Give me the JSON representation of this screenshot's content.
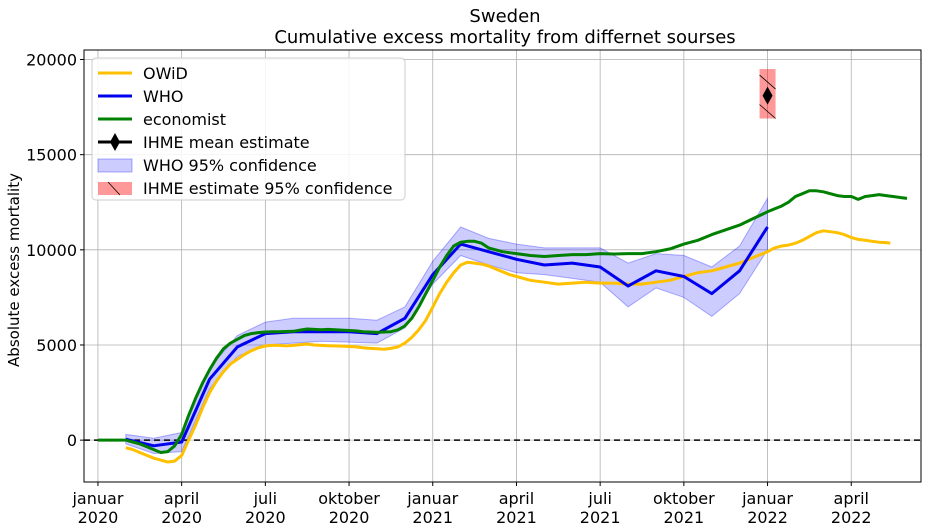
{
  "chart_data": {
    "type": "line",
    "title": "Sweden",
    "subtitle": "Cumulative excess mortality from differnet sourses",
    "ylabel": "Absolute excess mortality",
    "xlabel": "",
    "xlim": [
      -0.5,
      29.5
    ],
    "ylim": [
      -2200,
      20500
    ],
    "grid": true,
    "legend_position": "top-left",
    "y_ticks": [
      0,
      5000,
      10000,
      15000,
      20000
    ],
    "y_tick_labels": [
      "0",
      "5000",
      "10000",
      "15000",
      "20000"
    ],
    "x_ticks": [
      {
        "x": 0,
        "line1": "januar",
        "line2": "2020"
      },
      {
        "x": 3,
        "line1": "april",
        "line2": "2020"
      },
      {
        "x": 6,
        "line1": "juli",
        "line2": "2020"
      },
      {
        "x": 9,
        "line1": "oktober",
        "line2": "2020"
      },
      {
        "x": 12,
        "line1": "januar",
        "line2": "2021"
      },
      {
        "x": 15,
        "line1": "april",
        "line2": "2021"
      },
      {
        "x": 18,
        "line1": "juli",
        "line2": "2021"
      },
      {
        "x": 21,
        "line1": "oktober",
        "line2": "2021"
      },
      {
        "x": 24,
        "line1": "januar",
        "line2": "2022"
      },
      {
        "x": 27,
        "line1": "april",
        "line2": "2022"
      }
    ],
    "x_unit": "months since January 2020",
    "reference_line_y": 0,
    "series": [
      {
        "name": "OWiD",
        "color": "#ffc000",
        "x": [
          1.0,
          1.25,
          1.5,
          1.75,
          2.0,
          2.25,
          2.5,
          2.75,
          3.0,
          3.25,
          3.5,
          3.75,
          4.0,
          4.25,
          4.5,
          4.75,
          5.0,
          5.25,
          5.5,
          5.75,
          6.0,
          6.25,
          6.5,
          6.75,
          7.0,
          7.25,
          7.5,
          7.75,
          8.0,
          8.25,
          8.5,
          8.75,
          9.0,
          9.25,
          9.5,
          9.75,
          10.0,
          10.25,
          10.5,
          10.75,
          11.0,
          11.25,
          11.5,
          11.75,
          12.0,
          12.25,
          12.5,
          12.75,
          13.0,
          13.25,
          13.5,
          13.75,
          14.0,
          14.25,
          14.5,
          14.75,
          15.0,
          15.5,
          16.0,
          16.5,
          17.0,
          17.5,
          18.0,
          18.5,
          19.0,
          19.5,
          20.0,
          20.5,
          21.0,
          21.5,
          22.0,
          22.5,
          23.0,
          23.5,
          24.0,
          24.25,
          24.5,
          24.75,
          25.0,
          25.25,
          25.5,
          25.75,
          26.0,
          26.25,
          26.5,
          26.75,
          27.0,
          27.25,
          27.5,
          27.75,
          28.0,
          28.25,
          28.4
        ],
        "y": [
          -400,
          -500,
          -650,
          -800,
          -950,
          -1050,
          -1150,
          -1100,
          -800,
          0,
          800,
          1700,
          2500,
          3100,
          3600,
          4000,
          4250,
          4500,
          4700,
          4850,
          4950,
          4980,
          4980,
          4950,
          4980,
          5020,
          5050,
          5000,
          4980,
          4960,
          4950,
          4940,
          4920,
          4900,
          4850,
          4820,
          4800,
          4780,
          4820,
          4900,
          5100,
          5400,
          5800,
          6300,
          7000,
          7700,
          8300,
          8800,
          9200,
          9350,
          9300,
          9250,
          9150,
          9000,
          8850,
          8700,
          8600,
          8400,
          8300,
          8200,
          8250,
          8300,
          8250,
          8250,
          8200,
          8200,
          8300,
          8400,
          8600,
          8800,
          8900,
          9100,
          9300,
          9600,
          9900,
          10100,
          10200,
          10250,
          10350,
          10500,
          10700,
          10900,
          11000,
          10950,
          10900,
          10800,
          10650,
          10550,
          10500,
          10450,
          10400,
          10380,
          10350
        ]
      },
      {
        "name": "WHO",
        "color": "#0000ee",
        "x": [
          1,
          2,
          3,
          4,
          5,
          6,
          7,
          8,
          9,
          10,
          11,
          12,
          13,
          14,
          15,
          16,
          17,
          18,
          19,
          20,
          21,
          22,
          23,
          24
        ],
        "y": [
          50,
          -300,
          -100,
          3200,
          4900,
          5600,
          5700,
          5700,
          5700,
          5600,
          6400,
          8700,
          10300,
          9900,
          9500,
          9200,
          9300,
          9100,
          8100,
          8900,
          8600,
          7700,
          8900,
          11200
        ]
      },
      {
        "name": "economist",
        "color": "#008000",
        "x": [
          0.0,
          0.5,
          1.0,
          1.25,
          1.5,
          1.75,
          2.0,
          2.25,
          2.5,
          2.75,
          3.0,
          3.25,
          3.5,
          3.75,
          4.0,
          4.25,
          4.5,
          4.75,
          5.0,
          5.25,
          5.5,
          5.75,
          6.0,
          6.25,
          6.5,
          6.75,
          7.0,
          7.25,
          7.5,
          7.75,
          8.0,
          8.25,
          8.5,
          8.75,
          9.0,
          9.25,
          9.5,
          9.75,
          10.0,
          10.25,
          10.5,
          10.75,
          11.0,
          11.25,
          11.5,
          11.75,
          12.0,
          12.25,
          12.5,
          12.75,
          13.0,
          13.25,
          13.5,
          13.75,
          14.0,
          14.25,
          14.5,
          14.75,
          15.0,
          15.5,
          16.0,
          16.5,
          17.0,
          17.5,
          18.0,
          18.5,
          19.0,
          19.5,
          20.0,
          20.5,
          21.0,
          21.5,
          22.0,
          22.5,
          23.0,
          23.5,
          24.0,
          24.25,
          24.5,
          24.75,
          25.0,
          25.25,
          25.5,
          25.75,
          26.0,
          26.25,
          26.5,
          26.75,
          27.0,
          27.25,
          27.5,
          27.75,
          28.0,
          28.25,
          28.5,
          28.75,
          29.0
        ],
        "y": [
          0,
          0,
          0,
          -100,
          -200,
          -350,
          -500,
          -650,
          -600,
          -300,
          300,
          1300,
          2200,
          3000,
          3700,
          4300,
          4800,
          5100,
          5300,
          5500,
          5600,
          5650,
          5680,
          5700,
          5700,
          5710,
          5720,
          5780,
          5840,
          5820,
          5800,
          5820,
          5800,
          5780,
          5760,
          5740,
          5700,
          5680,
          5660,
          5680,
          5700,
          5800,
          6000,
          6400,
          7000,
          7700,
          8400,
          9100,
          9700,
          10200,
          10400,
          10450,
          10450,
          10350,
          10100,
          10000,
          9900,
          9850,
          9800,
          9700,
          9650,
          9700,
          9750,
          9750,
          9800,
          9780,
          9800,
          9800,
          9900,
          10050,
          10300,
          10500,
          10800,
          11050,
          11300,
          11650,
          12000,
          12150,
          12300,
          12500,
          12800,
          12950,
          13100,
          13100,
          13050,
          12950,
          12850,
          12800,
          12800,
          12650,
          12800,
          12850,
          12900,
          12850,
          12800,
          12750,
          12700
        ]
      }
    ],
    "confidence_bands": [
      {
        "name": "WHO 95% confidence",
        "color": "#0000ff",
        "opacity": 0.2,
        "x": [
          1,
          2,
          3,
          4,
          5,
          6,
          7,
          8,
          9,
          10,
          11,
          12,
          13,
          14,
          15,
          16,
          17,
          18,
          19,
          20,
          21,
          22,
          23,
          24
        ],
        "lower": [
          -200,
          -700,
          -600,
          2700,
          4400,
          5000,
          5100,
          5200,
          5150,
          5100,
          5900,
          8200,
          9700,
          9200,
          8800,
          8700,
          8500,
          8300,
          7000,
          8000,
          7500,
          6500,
          7700,
          10000
        ],
        "upper": [
          300,
          100,
          400,
          3800,
          5500,
          6200,
          6400,
          6400,
          6400,
          6300,
          7000,
          9400,
          11200,
          10600,
          10300,
          10100,
          10100,
          10100,
          9300,
          9800,
          9700,
          9100,
          10200,
          12700
        ]
      }
    ],
    "ihme": {
      "mean_label": "IHME mean estimate",
      "ci_label": " IHME estimate 95% confidence",
      "x": 24,
      "mean": 18100,
      "lower": 16900,
      "upper": 19500,
      "band_color": "#ff0000",
      "band_opacity": 0.4
    }
  }
}
